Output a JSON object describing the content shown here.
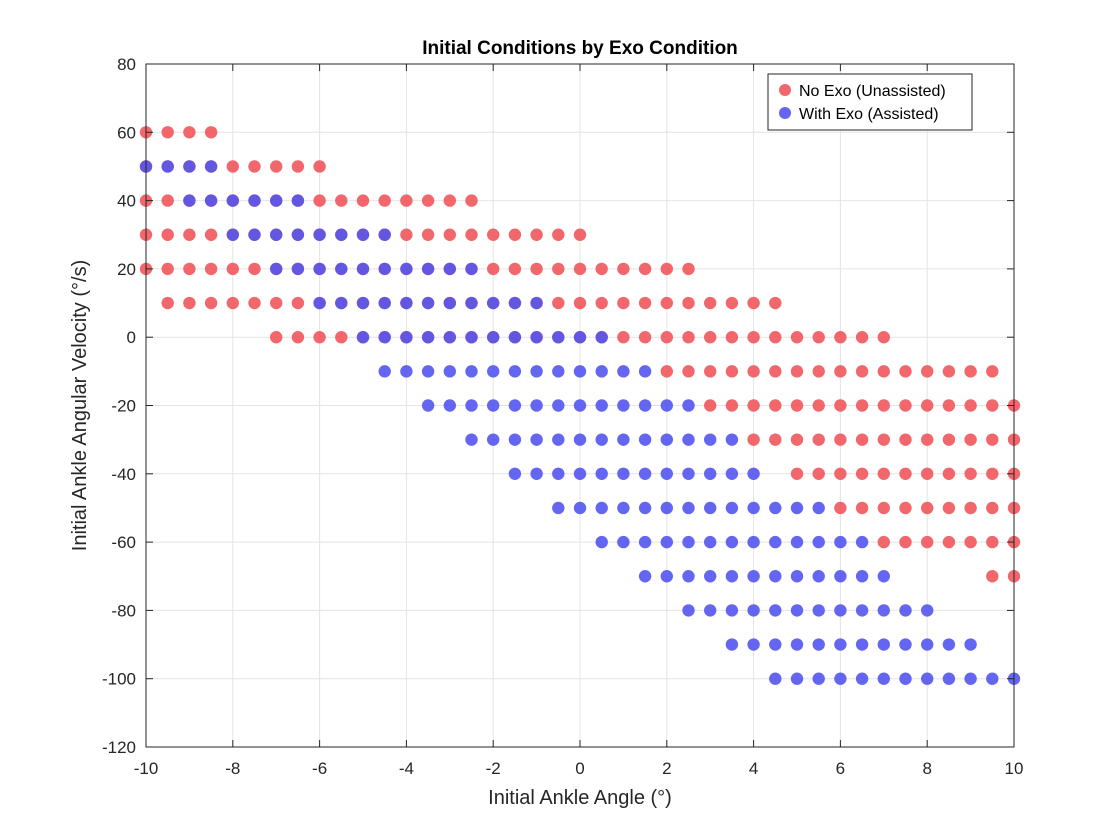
{
  "chart_data": {
    "type": "scatter",
    "title": "Initial Conditions by Exo Condition",
    "xlabel": "Initial Ankle Angle (°)",
    "ylabel": "Initial Ankle Angular Velocity (°/s)",
    "xlim": [
      -10,
      10
    ],
    "ylim": [
      -120,
      80
    ],
    "xticks": [
      -10,
      -8,
      -6,
      -4,
      -2,
      0,
      2,
      4,
      6,
      8,
      10
    ],
    "yticks": [
      -120,
      -100,
      -80,
      -60,
      -40,
      -20,
      0,
      20,
      40,
      60,
      80
    ],
    "grid": true,
    "legend_position": "top-right",
    "series": [
      {
        "name": "No Exo (Unassisted)",
        "color": "#f0575c",
        "rows": [
          {
            "y": 60,
            "x_from": -10,
            "x_to": -8.5
          },
          {
            "y": 50,
            "x_from": -10,
            "x_to": -6
          },
          {
            "y": 40,
            "x_from": -10,
            "x_to": -2.5
          },
          {
            "y": 30,
            "x_from": -10,
            "x_to": 0
          },
          {
            "y": 20,
            "x_from": -10,
            "x_to": 2.5
          },
          {
            "y": 10,
            "x_from": -9.5,
            "x_to": 4.5
          },
          {
            "y": 0,
            "x_from": -7,
            "x_to": 7
          },
          {
            "y": -10,
            "x_from": 2,
            "x_to": 9.5
          },
          {
            "y": -20,
            "x_from": 3,
            "x_to": 10
          },
          {
            "y": -30,
            "x_from": 4,
            "x_to": 10
          },
          {
            "y": -40,
            "x_from": 5,
            "x_to": 10
          },
          {
            "y": -50,
            "x_from": 6,
            "x_to": 10
          },
          {
            "y": -60,
            "x_from": 7,
            "x_to": 10
          },
          {
            "y": -70,
            "x_from": 9.5,
            "x_to": 10
          }
        ]
      },
      {
        "name": "With Exo (Assisted)",
        "color": "#5355ef",
        "rows": [
          {
            "y": 50,
            "x_from": -10,
            "x_to": -8.5
          },
          {
            "y": 40,
            "x_from": -9,
            "x_to": -6.5
          },
          {
            "y": 30,
            "x_from": -8,
            "x_to": -4.5
          },
          {
            "y": 20,
            "x_from": -7,
            "x_to": -2.5
          },
          {
            "y": 10,
            "x_from": -6,
            "x_to": -1
          },
          {
            "y": 0,
            "x_from": -5,
            "x_to": 0.5
          },
          {
            "y": -10,
            "x_from": -4.5,
            "x_to": 1.5
          },
          {
            "y": -20,
            "x_from": -3.5,
            "x_to": 2.5
          },
          {
            "y": -30,
            "x_from": -2.5,
            "x_to": 3.5
          },
          {
            "y": -40,
            "x_from": -1.5,
            "x_to": 4
          },
          {
            "y": -50,
            "x_from": -0.5,
            "x_to": 5.5
          },
          {
            "y": -60,
            "x_from": 0.5,
            "x_to": 6.5
          },
          {
            "y": -70,
            "x_from": 1.5,
            "x_to": 7
          },
          {
            "y": -80,
            "x_from": 2.5,
            "x_to": 8
          },
          {
            "y": -90,
            "x_from": 3.5,
            "x_to": 9
          },
          {
            "y": -100,
            "x_from": 4.5,
            "x_to": 10
          }
        ]
      }
    ]
  }
}
